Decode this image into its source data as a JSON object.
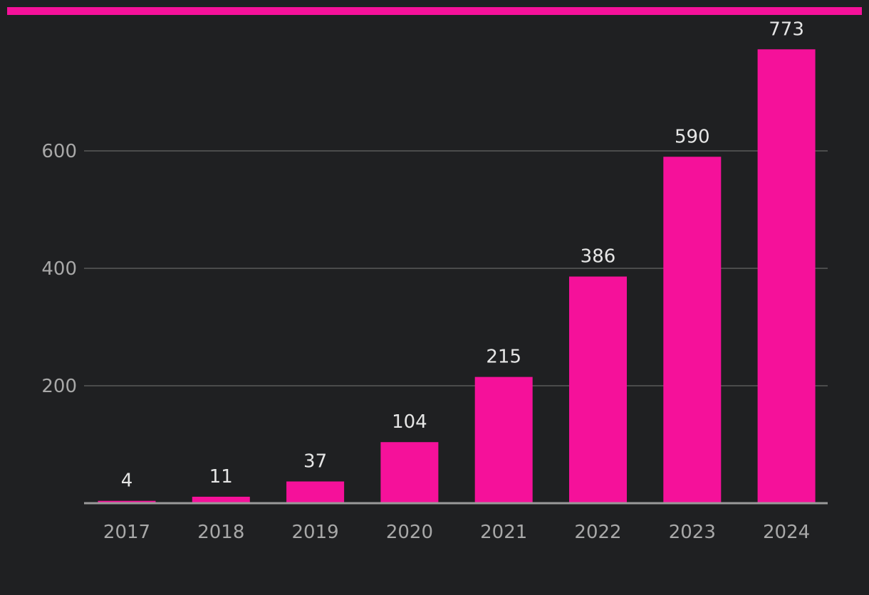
{
  "theme": {
    "background": "#1f2022",
    "accent": "#f5119a",
    "grid": "#5a5a5a",
    "axis": "#9a9a9a",
    "tick_text": "#a8a8a8",
    "label_text": "#e6e6e6"
  },
  "chart_data": {
    "type": "bar",
    "categories": [
      "2017",
      "2018",
      "2019",
      "2020",
      "2021",
      "2022",
      "2023",
      "2024"
    ],
    "values": [
      4,
      11,
      37,
      104,
      215,
      386,
      590,
      773
    ],
    "data_labels": [
      "4",
      "11",
      "37",
      "104",
      "215",
      "386",
      "590",
      "773"
    ],
    "title": "",
    "xlabel": "",
    "ylabel": "",
    "ylim": [
      0,
      773
    ],
    "yticks": [
      200,
      400,
      600
    ],
    "ytick_labels": [
      "200",
      "400",
      "600"
    ],
    "grid": "horizontal",
    "legend": "none"
  }
}
